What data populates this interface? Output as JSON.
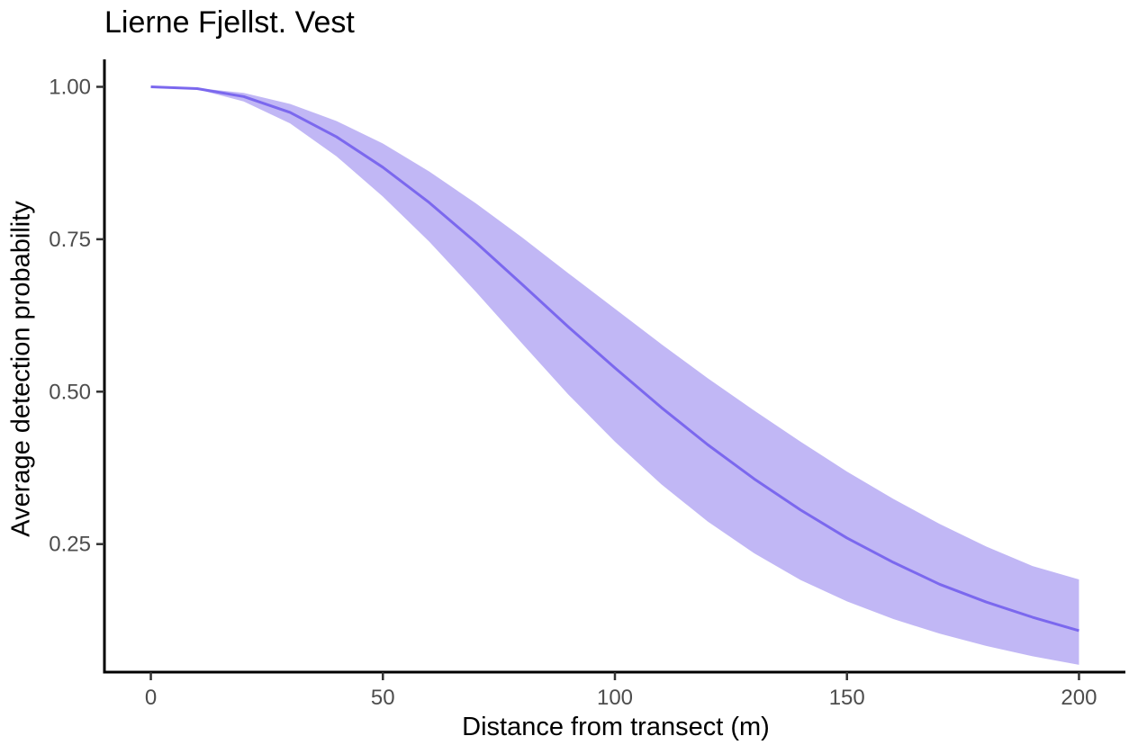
{
  "chart_data": {
    "type": "line",
    "title": "Lierne Fjellst. Vest",
    "xlabel": "Distance from transect (m)",
    "ylabel": "Average detection probability",
    "xlim": [
      -10,
      210
    ],
    "ylim": [
      0.04,
      1.045
    ],
    "xticks": [
      0,
      50,
      100,
      150,
      200
    ],
    "xtick_labels": [
      "0",
      "50",
      "100",
      "150",
      "200"
    ],
    "yticks": [
      0.25,
      0.5,
      0.75,
      1.0
    ],
    "ytick_labels": [
      "0.25",
      "0.50",
      "0.75",
      "1.00"
    ],
    "grid": false,
    "series": [
      {
        "x": [
          0,
          10,
          20,
          30,
          40,
          50,
          60,
          70,
          80,
          90,
          100,
          110,
          120,
          130,
          140,
          150,
          160,
          170,
          180,
          190,
          200
        ],
        "y": [
          1.0,
          0.997,
          0.984,
          0.958,
          0.918,
          0.868,
          0.81,
          0.745,
          0.676,
          0.606,
          0.539,
          0.474,
          0.413,
          0.357,
          0.306,
          0.26,
          0.22,
          0.184,
          0.155,
          0.13,
          0.108
        ],
        "lower": [
          1.0,
          0.996,
          0.976,
          0.94,
          0.886,
          0.82,
          0.746,
          0.664,
          0.579,
          0.495,
          0.418,
          0.348,
          0.287,
          0.235,
          0.191,
          0.156,
          0.127,
          0.103,
          0.083,
          0.066,
          0.052
        ],
        "upper": [
          1.0,
          0.998,
          0.99,
          0.972,
          0.944,
          0.907,
          0.861,
          0.809,
          0.753,
          0.694,
          0.636,
          0.578,
          0.522,
          0.469,
          0.418,
          0.369,
          0.324,
          0.283,
          0.246,
          0.214,
          0.192
        ]
      }
    ],
    "colors": {
      "line": "#7b68ee",
      "ribbon": "#c1b7f5"
    }
  }
}
